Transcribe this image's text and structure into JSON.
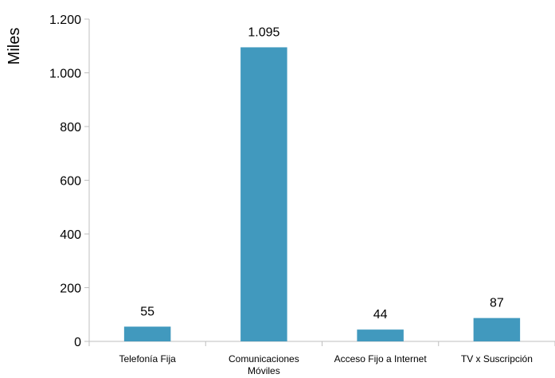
{
  "chart_data": {
    "type": "bar",
    "ylabel": "Miles",
    "xlabel": "",
    "title": "",
    "categories": [
      [
        "Telefonía Fija"
      ],
      [
        "Comunicaciones",
        "Móviles"
      ],
      [
        "Acceso Fijo a Internet"
      ],
      [
        "TV x Suscripción"
      ]
    ],
    "values": [
      55,
      1095,
      44,
      87
    ],
    "value_labels": [
      "55",
      "1.095",
      "44",
      "87"
    ],
    "ylim": [
      0,
      1200
    ],
    "yticks": [
      0,
      200,
      400,
      600,
      800,
      1000,
      1200
    ],
    "ytick_labels": [
      "0",
      "200",
      "400",
      "600",
      "800",
      "1.000",
      "1.200"
    ],
    "grid": false,
    "legend": "none",
    "bar_color": "#4199BE",
    "axis_color": "#BFBFBF"
  }
}
